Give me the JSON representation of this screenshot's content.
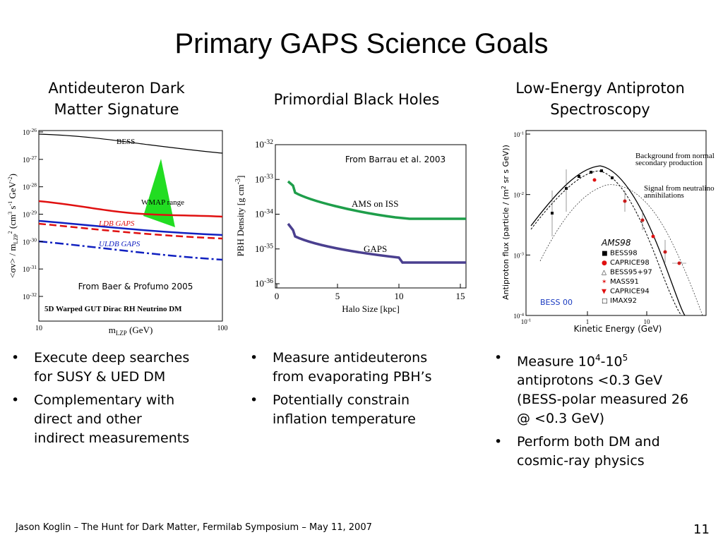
{
  "title": "Primary GAPS Science Goals",
  "columns": [
    {
      "heading": [
        "Antideuteron Dark",
        "Matter Signature"
      ],
      "figure": {
        "yticks": [
          {
            "base": "10",
            "exp": "-26"
          },
          {
            "base": "10",
            "exp": "-27"
          },
          {
            "base": "10",
            "exp": "-28"
          },
          {
            "base": "10",
            "exp": "-29"
          },
          {
            "base": "10",
            "exp": "-30"
          },
          {
            "base": "10",
            "exp": "-31"
          },
          {
            "base": "10",
            "exp": "-32"
          }
        ],
        "xticks": [
          "10",
          "100"
        ],
        "xlabel": [
          "m",
          "LZP",
          " (GeV)"
        ],
        "ylabel": [
          "<σv> / m",
          "LZP",
          "2",
          " (cm",
          "3",
          " s",
          "-1",
          " GeV",
          "-2",
          ")"
        ],
        "labels": {
          "bess": "BESS",
          "wmap": "WMAP range",
          "ldb": "LDB GAPS",
          "uldb": "ULDB GAPS",
          "source": "From Baer & Profumo 2005",
          "model": "5D Warped GUT Dirac RH Neutrino DM"
        }
      },
      "bullets": [
        [
          "Execute deep searches",
          "for SUSY & UED DM"
        ],
        [
          "Complementary with",
          "direct and other",
          "indirect measurements"
        ]
      ]
    },
    {
      "heading": [
        "Primordial Black Holes"
      ],
      "figure": {
        "yticks": [
          {
            "base": "10",
            "exp": "-32"
          },
          {
            "base": "10",
            "exp": "-33"
          },
          {
            "base": "10",
            "exp": "-34"
          },
          {
            "base": "10",
            "exp": "-35"
          },
          {
            "base": "10",
            "exp": "-36"
          }
        ],
        "xticks": [
          "0",
          "5",
          "10",
          "15"
        ],
        "xlabel": [
          "Halo Size [kpc]"
        ],
        "ylabel": [
          "PBH Density [g cm",
          "-3",
          "]"
        ],
        "labels": {
          "ams": "AMS on ISS",
          "gaps": "GAPS",
          "source": "From Barrau et al. 2003"
        }
      },
      "bullets": [
        [
          "Measure antideuterons",
          "from evaporating PBH’s"
        ],
        [
          "Potentially constrain",
          "inflation temperature"
        ]
      ]
    },
    {
      "heading": [
        "Low-Energy Antiproton",
        "Spectroscopy"
      ],
      "figure": {
        "yticks": [
          {
            "base": "10",
            "exp": "-1"
          },
          {
            "base": "10",
            "exp": "-2"
          },
          {
            "base": "10",
            "exp": "-3"
          },
          {
            "base": "10",
            "exp": "-4"
          }
        ],
        "xticks": [
          {
            "base": "10",
            "exp": "-1"
          },
          {
            "base": "1",
            "exp": ""
          },
          {
            "base": "10",
            "exp": ""
          }
        ],
        "xlabel": [
          "Kinetic Energy (GeV)"
        ],
        "ylabel": [
          "Antiproton flux (particle / (m",
          "2",
          " sr s GeV))"
        ],
        "labels": {
          "background": [
            "Background from normal",
            "secondary production"
          ],
          "signal": [
            "Signal from neutralino",
            "annihilations"
          ],
          "bess00": "BESS 00"
        },
        "legend": [
          "AMS98",
          "BESS98",
          "CAPRICE98",
          "BESS95+97",
          "MASS91",
          "CAPRICE94",
          "IMAX92"
        ]
      },
      "bullets": [
        [
          "Measure 10",
          "4",
          "-10",
          "5",
          " antiprotons <0.3 GeV (BESS-polar measured 26 @ <0.3 GeV)"
        ],
        [
          "Perform both DM and cosmic-ray physics"
        ]
      ]
    }
  ],
  "footer": {
    "text": "Jason Koglin – The Hunt for Dark Matter, Fermilab Symposium – May 11, 2007",
    "page": "11"
  }
}
